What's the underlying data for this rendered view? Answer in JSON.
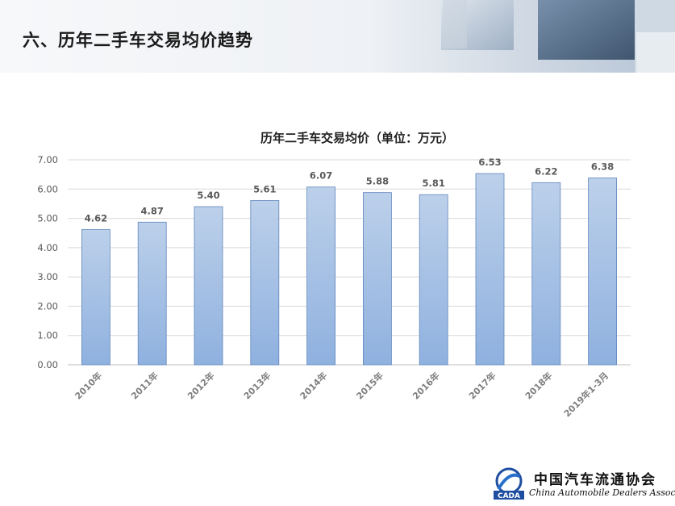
{
  "page": {
    "title": "六、历年二手车交易均价趋势"
  },
  "chart_data": {
    "type": "bar",
    "title": "历年二手车交易均价（单位：万元）",
    "categories": [
      "2010年",
      "2011年",
      "2012年",
      "2013年",
      "2014年",
      "2015年",
      "2016年",
      "2017年",
      "2018年",
      "2019年1-3月"
    ],
    "values": [
      4.62,
      4.87,
      5.4,
      5.61,
      6.07,
      5.88,
      5.81,
      6.53,
      6.22,
      6.38
    ],
    "value_labels": [
      "4.62",
      "4.87",
      "5.40",
      "5.61",
      "6.07",
      "5.88",
      "5.81",
      "6.53",
      "6.22",
      "6.38"
    ],
    "ylim": [
      0,
      7
    ],
    "yticks": [
      "0.00",
      "1.00",
      "2.00",
      "3.00",
      "4.00",
      "5.00",
      "6.00",
      "7.00"
    ],
    "grid": true,
    "legend": "none",
    "bar_color_top": "#bcd0ea",
    "bar_color_bottom": "#8fb1df",
    "bar_border": "#5f86bd"
  },
  "footer": {
    "org_cn": "中国汽车流通协会",
    "org_en": "China Automobile Dealers Association",
    "logo_text": "CADA"
  }
}
